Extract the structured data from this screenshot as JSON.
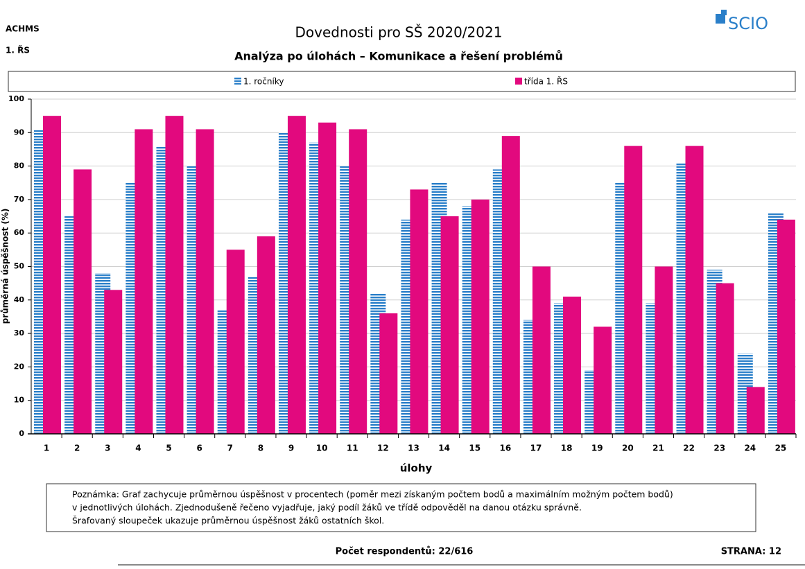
{
  "header": {
    "school": "ACHMS",
    "class": "1. ŘS",
    "logo": "SCIO"
  },
  "chart_data": {
    "type": "bar",
    "title": "Dovednosti pro SŠ 2020/2021",
    "subtitle": "Analýza po úlohách – Komunikace a řešení problémů",
    "x_label": "úlohy",
    "y_label": "průměrná úspěšnost (%)",
    "categories": [
      "1",
      "2",
      "3",
      "4",
      "5",
      "6",
      "7",
      "8",
      "9",
      "10",
      "11",
      "12",
      "13",
      "14",
      "15",
      "16",
      "17",
      "18",
      "19",
      "20",
      "21",
      "22",
      "23",
      "24",
      "25"
    ],
    "series": [
      {
        "name": "1. ročníky",
        "color": "#2a7fc9",
        "pattern": "horizontal-stripes",
        "values": [
          91,
          65,
          48,
          75,
          86,
          80,
          37,
          47,
          90,
          87,
          80,
          42,
          64,
          75,
          68,
          79,
          34,
          39,
          19,
          75,
          39,
          81,
          49,
          24,
          66
        ]
      },
      {
        "name": "třída  1. ŘS",
        "color": "#e2097e",
        "values": [
          95,
          79,
          43,
          91,
          95,
          91,
          55,
          59,
          95,
          93,
          91,
          36,
          73,
          65,
          70,
          89,
          50,
          41,
          32,
          86,
          50,
          86,
          45,
          14,
          64
        ]
      }
    ],
    "ylim": [
      0,
      100
    ],
    "yticks": [
      0,
      10,
      20,
      30,
      40,
      50,
      60,
      70,
      80,
      90,
      100
    ],
    "grid": true,
    "legend": "top"
  },
  "note": [
    "Poznámka: Graf zachycuje průměrnou úspěšnost v procentech (poměr mezi získaným počtem bodů a maximálním možným počtem bodů)",
    "v jednotlivých úlohách. Zjednodušeně řečeno vyjadřuje, jaký podíl žáků ve třídě odpověděl na danou otázku správně.",
    "Šrafovaný sloupeček ukazuje průměrnou úspěšnost žáků ostatních škol."
  ],
  "footer": {
    "respondents": "Počet respondentů: 22/616",
    "page": "STRANA: 12"
  }
}
